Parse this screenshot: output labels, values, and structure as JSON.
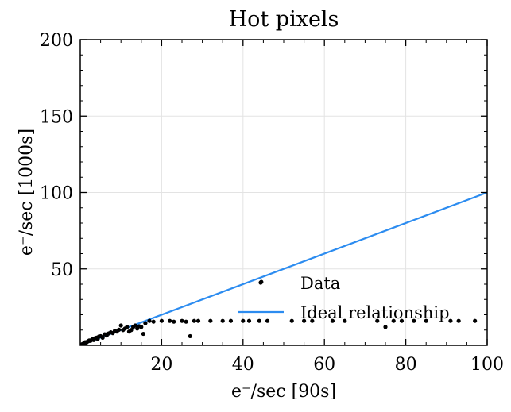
{
  "chart_data": {
    "type": "scatter",
    "title": "Hot pixels",
    "xlabel": "e⁻/sec [90s]",
    "ylabel": "e⁻/sec [1000s]",
    "xlim": [
      0,
      100
    ],
    "ylim": [
      0,
      200
    ],
    "x_ticks": [
      20,
      40,
      60,
      80,
      100
    ],
    "y_ticks": [
      50,
      100,
      150,
      200
    ],
    "grid": true,
    "legend_position": "lower-right",
    "series": [
      {
        "name": "Data",
        "kind": "scatter",
        "color": "#000000",
        "points": [
          [
            0.5,
            0.8
          ],
          [
            0.8,
            1.2
          ],
          [
            1.0,
            1.5
          ],
          [
            1.2,
            2.0
          ],
          [
            1.5,
            1.8
          ],
          [
            1.8,
            2.5
          ],
          [
            2.0,
            2.8
          ],
          [
            2.2,
            3.2
          ],
          [
            2.5,
            3.0
          ],
          [
            2.8,
            3.6
          ],
          [
            3.0,
            4.0
          ],
          [
            3.3,
            3.5
          ],
          [
            3.6,
            4.6
          ],
          [
            4.0,
            5.0
          ],
          [
            4.3,
            4.2
          ],
          [
            4.6,
            5.8
          ],
          [
            5.0,
            6.0
          ],
          [
            5.5,
            5.0
          ],
          [
            6.0,
            7.2
          ],
          [
            6.5,
            6.5
          ],
          [
            7.0,
            7.8
          ],
          [
            7.5,
            8.5
          ],
          [
            8.0,
            8.0
          ],
          [
            8.5,
            9.5
          ],
          [
            9.0,
            9.0
          ],
          [
            9.5,
            10.2
          ],
          [
            10.0,
            13.0
          ],
          [
            10.5,
            10.0
          ],
          [
            11.0,
            11.0
          ],
          [
            11.5,
            12.0
          ],
          [
            12.0,
            9.0
          ],
          [
            12.5,
            10.0
          ],
          [
            13.0,
            12.0
          ],
          [
            13.5,
            13.0
          ],
          [
            14.0,
            11.0
          ],
          [
            14.5,
            12.5
          ],
          [
            15.0,
            12.0
          ],
          [
            15.5,
            7.5
          ],
          [
            16.0,
            14.5
          ],
          [
            17.0,
            16.0
          ],
          [
            18.0,
            15.5
          ],
          [
            20.0,
            16.0
          ],
          [
            22.0,
            16.0
          ],
          [
            23.0,
            15.5
          ],
          [
            25.0,
            16.0
          ],
          [
            26.0,
            15.5
          ],
          [
            27.0,
            6.0
          ],
          [
            28.0,
            16.0
          ],
          [
            29.0,
            16.0
          ],
          [
            32.0,
            16.0
          ],
          [
            35.0,
            16.0
          ],
          [
            37.0,
            16.0
          ],
          [
            40.0,
            16.0
          ],
          [
            41.5,
            16.0
          ],
          [
            44.0,
            16.0
          ],
          [
            44.5,
            41.5
          ],
          [
            46.0,
            16.0
          ],
          [
            52.0,
            16.0
          ],
          [
            55.0,
            16.0
          ],
          [
            57.0,
            16.0
          ],
          [
            62.0,
            16.0
          ],
          [
            65.0,
            16.0
          ],
          [
            73.0,
            16.0
          ],
          [
            75.0,
            12.0
          ],
          [
            77.0,
            16.0
          ],
          [
            79.0,
            16.0
          ],
          [
            82.0,
            16.0
          ],
          [
            85.0,
            16.0
          ],
          [
            91.0,
            16.0
          ],
          [
            93.0,
            16.0
          ],
          [
            97.0,
            16.0
          ]
        ]
      },
      {
        "name": "Ideal relationship",
        "kind": "line",
        "color": "#2c8cf0",
        "points": [
          [
            0,
            0
          ],
          [
            100,
            100
          ]
        ]
      }
    ]
  }
}
